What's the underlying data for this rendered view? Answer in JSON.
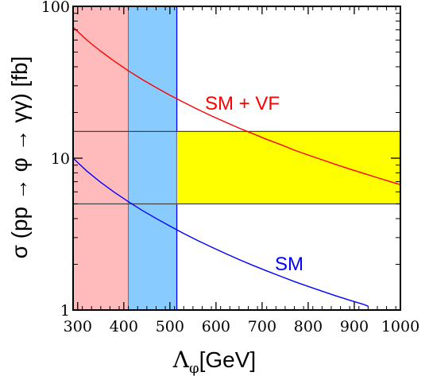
{
  "chart_data": {
    "type": "line",
    "xlabel": "Λ_φ[GeV]",
    "xlabel_main": "Λ",
    "xlabel_sub": "φ",
    "xlabel_unit": "[GeV]",
    "ylabel": "σ (pp → φ → γγ) [fb]",
    "xlim": [
      290,
      1000
    ],
    "ylim": [
      1,
      100
    ],
    "yscale": "log",
    "x_ticks": [
      300,
      400,
      500,
      600,
      700,
      800,
      900,
      1000
    ],
    "x_tick_labels": [
      "300",
      "400",
      "500",
      "600",
      "700",
      "800",
      "900",
      "1000"
    ],
    "y_ticks": [
      1,
      10,
      100
    ],
    "y_tick_labels": [
      "1",
      "10",
      "100"
    ],
    "grid": false,
    "series": [
      {
        "name": "SM + VF",
        "color": "#ff0000",
        "x": [
          290,
          320,
          350,
          380,
          410,
          440,
          470,
          500,
          530,
          560,
          590,
          620,
          650,
          680,
          710,
          740,
          770,
          800,
          830,
          860,
          890,
          920,
          950,
          980,
          1000
        ],
        "y": [
          73.0,
          59.9,
          50.6,
          43.4,
          37.6,
          33.0,
          29.2,
          26.0,
          23.3,
          21.0,
          19.0,
          17.3,
          15.8,
          14.5,
          13.3,
          12.3,
          11.3,
          10.5,
          9.76,
          9.09,
          8.48,
          7.94,
          7.44,
          6.98,
          6.69
        ]
      },
      {
        "name": "SM",
        "color": "#0000ff",
        "x": [
          290,
          320,
          350,
          380,
          410,
          440,
          470,
          500,
          530,
          560,
          590,
          620,
          650,
          680,
          710,
          740,
          770,
          800,
          830,
          860,
          890,
          920,
          930
        ],
        "y": [
          10.0,
          8.22,
          6.93,
          5.95,
          5.17,
          4.53,
          4.01,
          3.57,
          3.19,
          2.87,
          2.6,
          2.36,
          2.15,
          1.97,
          1.81,
          1.67,
          1.54,
          1.43,
          1.33,
          1.24,
          1.16,
          1.09,
          1.06
        ]
      }
    ],
    "bands": [
      {
        "kind": "x",
        "from": 290,
        "to": 410,
        "fill": "#ffbbbb",
        "edge": "#444444"
      },
      {
        "kind": "x",
        "from": 410,
        "to": 515,
        "fill": "#88ccff",
        "edge": "#0000ff"
      },
      {
        "kind": "rect",
        "x_from": 515,
        "x_to": 1000,
        "y_from": 5,
        "y_to": 15,
        "fill": "#ffff00"
      }
    ],
    "hlines": [
      {
        "y": 15,
        "color": "#444444"
      },
      {
        "y": 5,
        "color": "#444444"
      }
    ]
  }
}
